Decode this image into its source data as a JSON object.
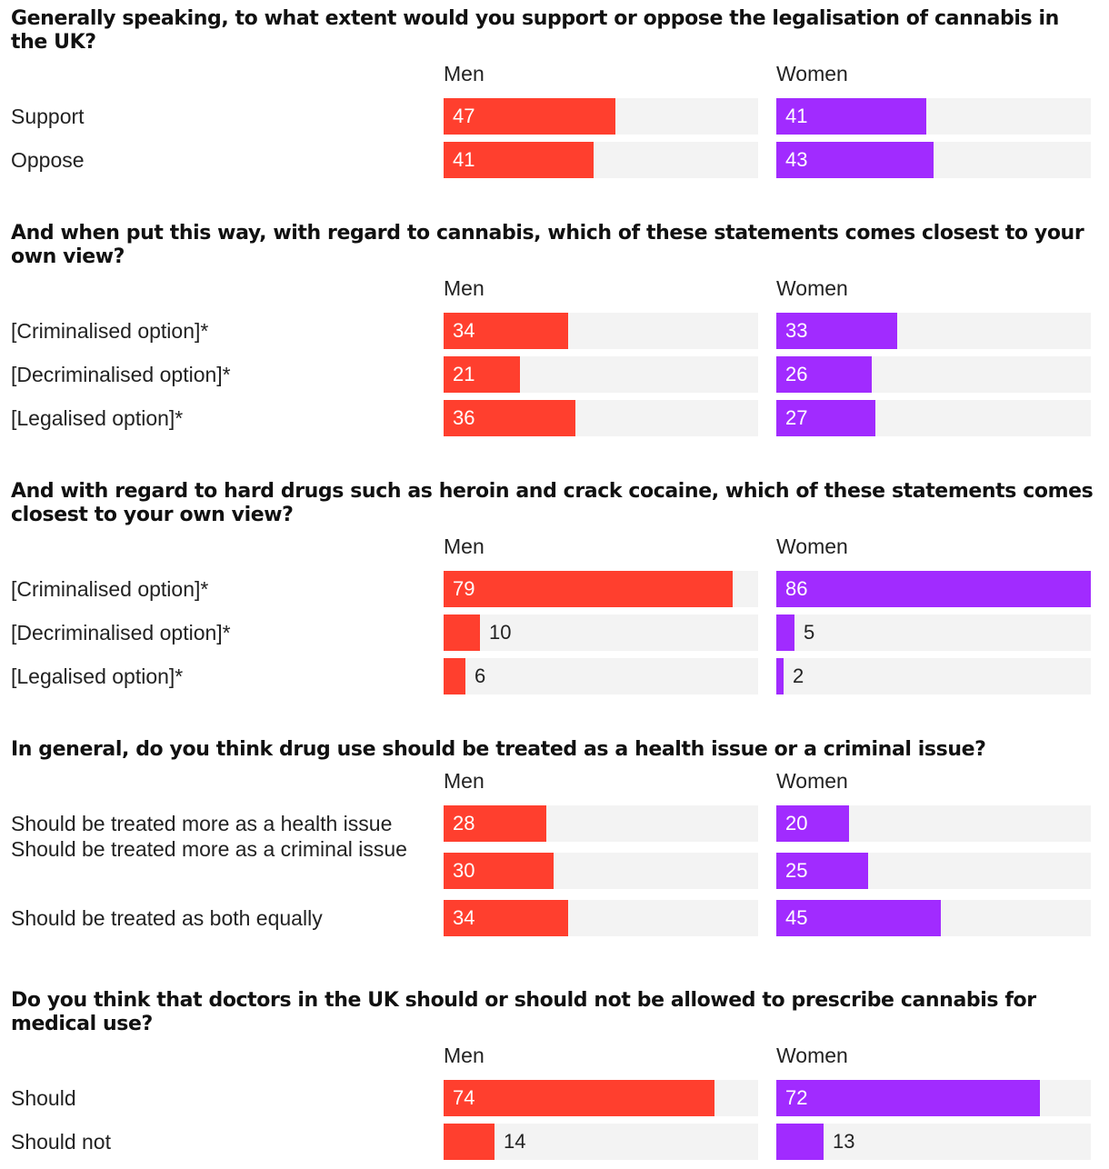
{
  "colors": {
    "men": "#ff3f2e",
    "women": "#a12bff",
    "track": "#f3f3f3"
  },
  "chart_data": [
    {
      "type": "bar",
      "title": "Generally speaking, to what extent would you support or oppose the legalisation of cannabis in the UK?",
      "categories": [
        "Support",
        "Oppose"
      ],
      "series": [
        {
          "name": "Men",
          "values": [
            47,
            41
          ]
        },
        {
          "name": "Women",
          "values": [
            41,
            43
          ]
        }
      ],
      "xlim": [
        0,
        86
      ]
    },
    {
      "type": "bar",
      "title": "And when put this way, with regard to cannabis, which of these statements comes closest to your own view?",
      "categories": [
        "[Criminalised option]*",
        "[Decriminalised option]*",
        "[Legalised option]*"
      ],
      "series": [
        {
          "name": "Men",
          "values": [
            34,
            21,
            36
          ]
        },
        {
          "name": "Women",
          "values": [
            33,
            26,
            27
          ]
        }
      ],
      "xlim": [
        0,
        86
      ]
    },
    {
      "type": "bar",
      "title": "And with regard to hard drugs such as heroin and crack cocaine, which of these statements comes closest to your own view?",
      "categories": [
        "[Criminalised option]*",
        "[Decriminalised option]*",
        "[Legalised option]*"
      ],
      "series": [
        {
          "name": "Men",
          "values": [
            79,
            10,
            6
          ]
        },
        {
          "name": "Women",
          "values": [
            86,
            5,
            2
          ]
        }
      ],
      "xlim": [
        0,
        86
      ]
    },
    {
      "type": "bar",
      "title": "In general, do you think drug use should be treated as a health issue or a criminal issue?",
      "categories": [
        "Should be treated more as a health issue",
        "Should be treated more as a criminal issue",
        "Should be treated as both equally"
      ],
      "series": [
        {
          "name": "Men",
          "values": [
            28,
            30,
            34
          ]
        },
        {
          "name": "Women",
          "values": [
            20,
            25,
            45
          ]
        }
      ],
      "xlim": [
        0,
        86
      ]
    },
    {
      "type": "bar",
      "title": "Do you think that doctors in the UK should or should not be allowed to prescribe cannabis for medical use?",
      "categories": [
        "Should",
        "Should not"
      ],
      "series": [
        {
          "name": "Men",
          "values": [
            74,
            14
          ]
        },
        {
          "name": "Women",
          "values": [
            72,
            13
          ]
        }
      ],
      "xlim": [
        0,
        86
      ]
    }
  ]
}
